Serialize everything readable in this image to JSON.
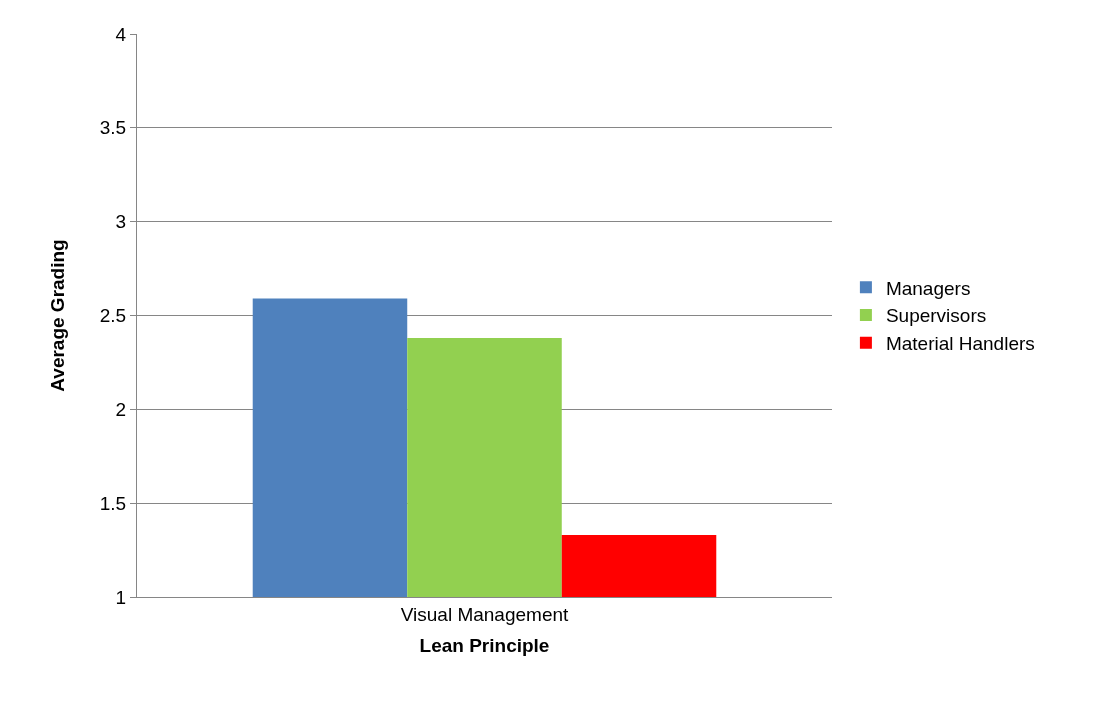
{
  "chart_data": {
    "type": "bar",
    "xlabel": "Lean Principle",
    "ylabel": "Average Grading",
    "categories": [
      "Visual Management"
    ],
    "series": [
      {
        "name": "Managers",
        "color": "#4f81bd",
        "values": [
          2.59
        ]
      },
      {
        "name": "Supervisors",
        "color": "#92d050",
        "values": [
          2.38
        ]
      },
      {
        "name": "Material Handlers",
        "color": "#ff0000",
        "values": [
          1.33
        ]
      }
    ],
    "ylim": [
      1,
      4
    ],
    "yticks": [
      1,
      1.5,
      2,
      2.5,
      3,
      3.5,
      4
    ],
    "grid": "y",
    "legend": "right"
  }
}
